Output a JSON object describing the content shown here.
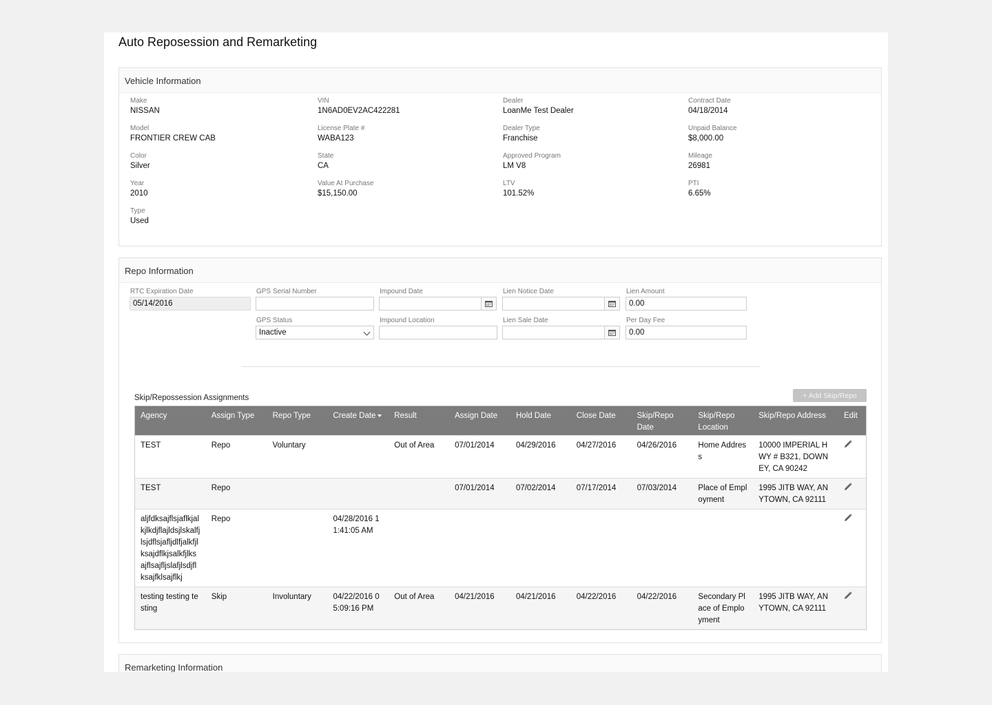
{
  "page_title": "Auto Reposession and Remarketing",
  "vehicle": {
    "title": "Vehicle Information",
    "fields": [
      {
        "label": "Make",
        "value": "NISSAN"
      },
      {
        "label": "Model",
        "value": "FRONTIER CREW CAB"
      },
      {
        "label": "Color",
        "value": "Silver"
      },
      {
        "label": "Year",
        "value": "2010"
      },
      {
        "label": "Type",
        "value": "Used"
      },
      {
        "label": "VIN",
        "value": "1N6AD0EV2AC422281"
      },
      {
        "label": "License Plate #",
        "value": "WABA123"
      },
      {
        "label": "State",
        "value": "CA"
      },
      {
        "label": "Value At Purchase",
        "value": "$15,150.00"
      },
      {
        "label": "Dealer",
        "value": "LoanMe Test Dealer"
      },
      {
        "label": "Dealer Type",
        "value": "Franchise"
      },
      {
        "label": "Approved Program",
        "value": "LM V8"
      },
      {
        "label": "LTV",
        "value": "101.52%"
      },
      {
        "label": "Contract Date",
        "value": "04/18/2014"
      },
      {
        "label": "Unpaid Balance",
        "value": "$8,000.00"
      },
      {
        "label": "Mileage",
        "value": "26981"
      },
      {
        "label": "PTI",
        "value": "6.65%"
      }
    ]
  },
  "repo": {
    "title": "Repo Information",
    "rtc_label": "RTC Expiration Date",
    "rtc_value": "05/14/2016",
    "gps_serial_label": "GPS Serial Number",
    "gps_serial_value": "",
    "gps_status_label": "GPS Status",
    "gps_status_value": "Inactive",
    "impound_date_label": "Impound Date",
    "impound_date_value": "",
    "impound_location_label": "Impound Location",
    "impound_location_value": "",
    "lien_notice_label": "Lien Notice Date",
    "lien_notice_value": "",
    "lien_sale_label": "Lien Sale Date",
    "lien_sale_value": "",
    "lien_amount_label": "Lien Amount",
    "lien_amount_value": "0.00",
    "per_day_fee_label": "Per Day Fee",
    "per_day_fee_value": "0.00",
    "assignments_title": "Skip/Repossession Assignments",
    "add_button": "+ Add Skip/Repo",
    "columns": [
      "Agency",
      "Assign Type",
      "Repo Type",
      "Create Date",
      "Result",
      "Assign Date",
      "Hold Date",
      "Close Date",
      "Skip/Repo Date",
      "Skip/Repo Location",
      "Skip/Repo Address",
      "Edit"
    ],
    "rows": [
      [
        "TEST",
        "Repo",
        "Voluntary",
        "",
        "Out of Area",
        "07/01/2014",
        "04/29/2016",
        "04/27/2016",
        "04/26/2016",
        "Home Address",
        "10000 IMPERIAL HWY # B321, DOWNEY, CA 90242"
      ],
      [
        "TEST",
        "Repo",
        "",
        "",
        "",
        "07/01/2014",
        "07/02/2014",
        "07/17/2014",
        "07/03/2014",
        "Place of Employment",
        "1995 JITB WAY, ANYTOWN, CA 92111"
      ],
      [
        "aljfdksajflsjaflkjalkjlkdjflajldsjlskalfjlsjdflsjafljdlfjalkfjlksajdflkjsalkfjlksajflsajfljslafjlsdjflksajfklsajflkj",
        "Repo",
        "",
        "04/28/2016 11:41:05 AM",
        "",
        "",
        "",
        "",
        "",
        "",
        ""
      ],
      [
        "testing testing testing",
        "Skip",
        "Involuntary",
        "04/22/2016 05:09:16 PM",
        "Out of Area",
        "04/21/2016",
        "04/21/2016",
        "04/22/2016",
        "04/22/2016",
        "Secondary Place of Employment",
        "1995 JITB WAY, ANYTOWN, CA 92111"
      ]
    ]
  },
  "remarketing": {
    "title": "Remarketing Information"
  }
}
